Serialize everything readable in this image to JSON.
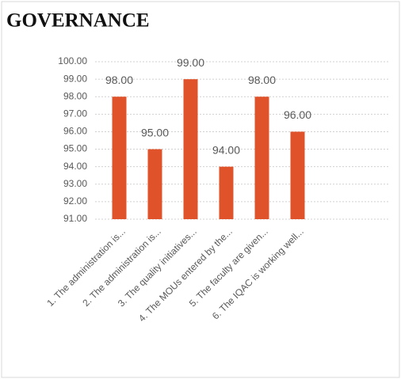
{
  "chart_data": {
    "type": "bar",
    "title": "GOVERNANCE",
    "categories": [
      "1. The administration is...",
      "2. The administration is...",
      "3. The quality initiatives...",
      "4. The MOUs entered by the...",
      "5. The faculty are given...",
      "6. The IQAC is working well..."
    ],
    "values": [
      98,
      95,
      99,
      94,
      98,
      96
    ],
    "value_labels": [
      "98.00",
      "95.00",
      "99.00",
      "94.00",
      "98.00",
      "96.00"
    ],
    "color": "#e0532a",
    "ylim": [
      91,
      100
    ],
    "yticks": [
      {
        "value": 91,
        "label": "91.00"
      },
      {
        "value": 92,
        "label": "92.00"
      },
      {
        "value": 93,
        "label": "93.00"
      },
      {
        "value": 94,
        "label": "94.00"
      },
      {
        "value": 95,
        "label": "95.00"
      },
      {
        "value": 96,
        "label": "96.00"
      },
      {
        "value": 97,
        "label": "97.00"
      },
      {
        "value": 98,
        "label": "98.00"
      },
      {
        "value": 99,
        "label": "99.00"
      },
      {
        "value": 100,
        "label": "100.00"
      }
    ],
    "grid": true
  }
}
